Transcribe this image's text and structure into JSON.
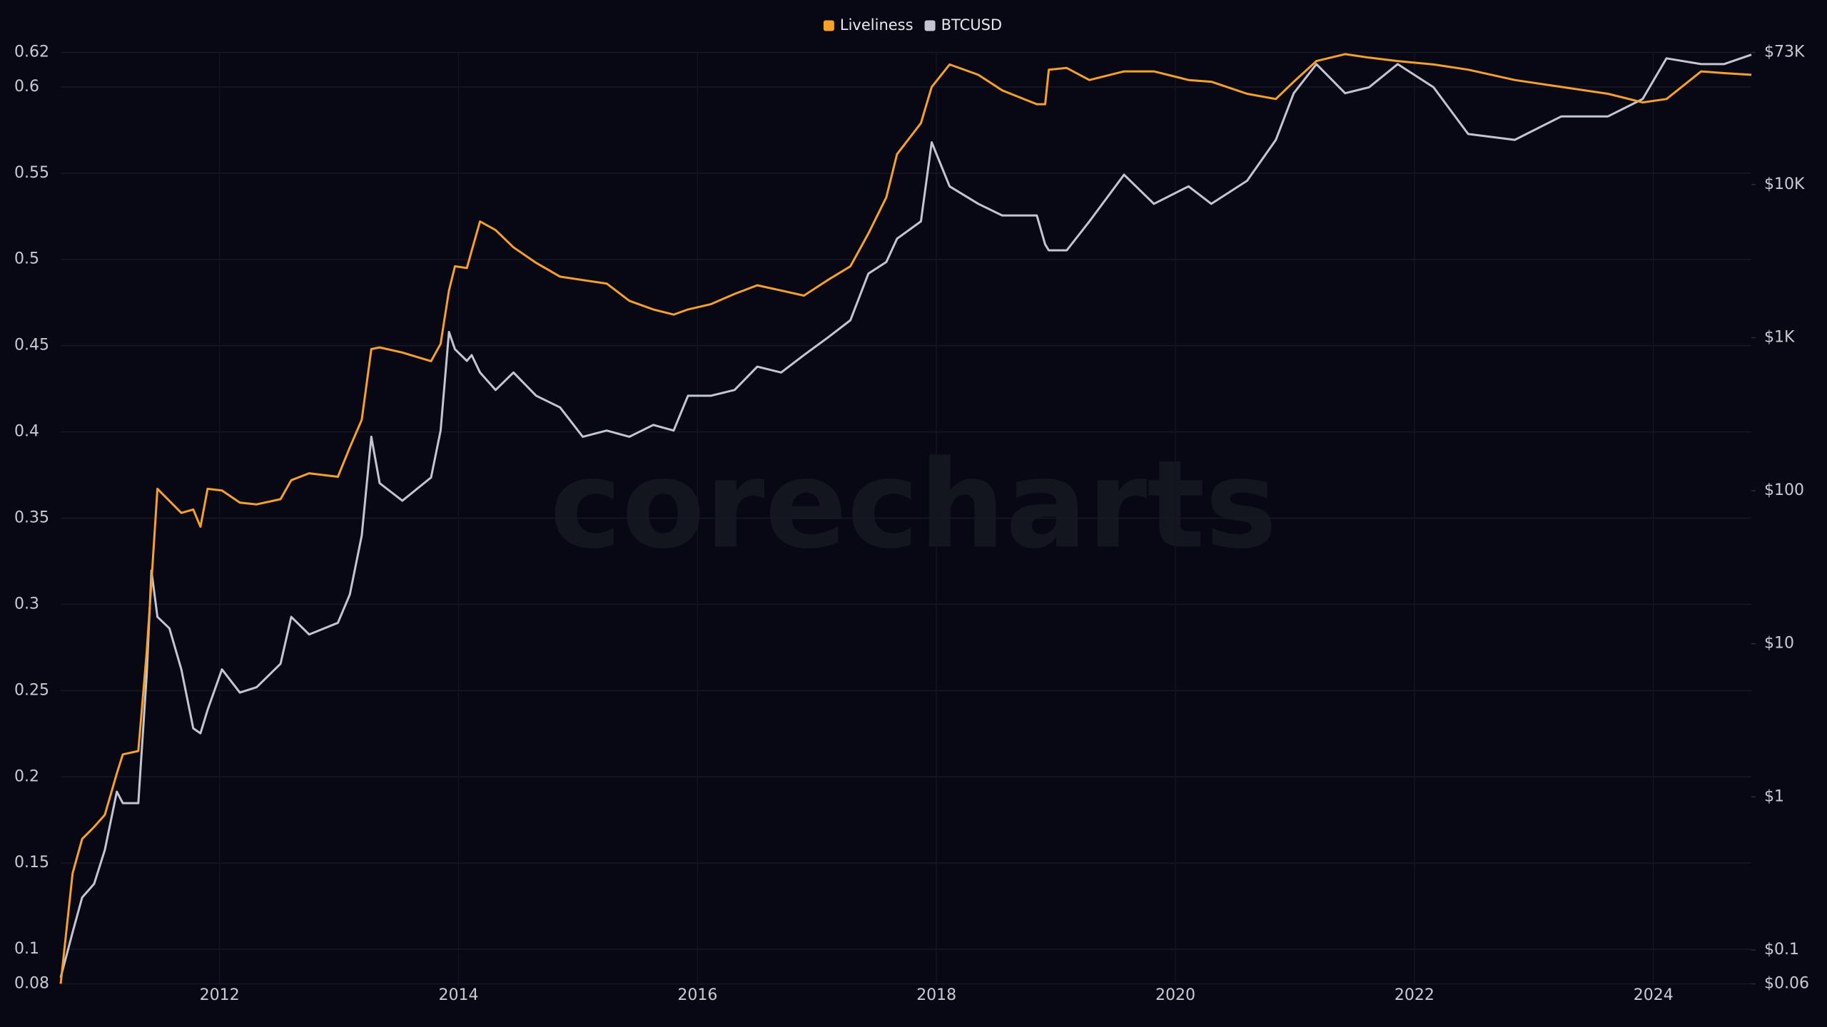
{
  "chart_data": {
    "type": "line",
    "watermark": "corecharts",
    "legend": "top",
    "grid": true,
    "x": [
      2010.67,
      2010.77,
      2010.85,
      2010.95,
      2011.04,
      2011.14,
      2011.19,
      2011.32,
      2011.39,
      2011.43,
      2011.48,
      2011.58,
      2011.68,
      2011.78,
      2011.84,
      2011.9,
      2012.02,
      2012.17,
      2012.31,
      2012.51,
      2012.6,
      2012.75,
      2012.99,
      2013.09,
      2013.19,
      2013.27,
      2013.34,
      2013.53,
      2013.77,
      2013.85,
      2013.92,
      2013.97,
      2014.07,
      2014.11,
      2014.18,
      2014.31,
      2014.46,
      2014.65,
      2014.85,
      2015.04,
      2015.24,
      2015.43,
      2015.63,
      2015.8,
      2015.92,
      2016.11,
      2016.31,
      2016.5,
      2016.7,
      2016.89,
      2017.09,
      2017.28,
      2017.43,
      2017.58,
      2017.67,
      2017.87,
      2017.96,
      2018.11,
      2018.35,
      2018.55,
      2018.84,
      2018.91,
      2018.94,
      2019.09,
      2019.28,
      2019.57,
      2019.82,
      2020.11,
      2020.3,
      2020.6,
      2020.84,
      2020.99,
      2021.18,
      2021.42,
      2021.62,
      2021.86,
      2022.16,
      2022.45,
      2022.84,
      2023.23,
      2023.62,
      2023.91,
      2024.11,
      2024.4,
      2024.59,
      2024.82
    ],
    "series": [
      {
        "name": "Liveliness",
        "color": "#f7a12b",
        "axis": "y",
        "values": [
          0.08,
          0.144,
          0.164,
          0.171,
          0.178,
          0.202,
          0.213,
          0.215,
          0.272,
          0.313,
          0.367,
          0.36,
          0.353,
          0.355,
          0.345,
          0.367,
          0.366,
          0.359,
          0.358,
          0.361,
          0.372,
          0.376,
          0.374,
          0.391,
          0.407,
          0.448,
          0.449,
          0.446,
          0.441,
          0.451,
          0.482,
          0.496,
          0.495,
          0.505,
          0.522,
          0.517,
          0.507,
          0.498,
          0.49,
          0.488,
          0.486,
          0.476,
          0.471,
          0.468,
          0.471,
          0.474,
          0.48,
          0.485,
          0.482,
          0.479,
          0.488,
          0.496,
          0.515,
          0.536,
          0.561,
          0.579,
          0.6,
          0.613,
          0.607,
          0.598,
          0.59,
          0.59,
          0.61,
          0.611,
          0.604,
          0.609,
          0.609,
          0.604,
          0.603,
          0.596,
          0.593,
          0.603,
          0.615,
          0.619,
          0.617,
          0.615,
          0.613,
          0.61,
          0.604,
          0.6,
          0.596,
          0.591,
          0.593,
          0.609,
          0.608,
          0.607
        ]
      },
      {
        "name": "BTCUSD",
        "color": "#c3c6d2",
        "axis": "y2",
        "values": [
          0.066,
          0.13,
          0.22,
          0.27,
          0.45,
          1.08,
          0.91,
          0.91,
          6.2,
          30,
          15,
          12.6,
          6.8,
          2.8,
          2.6,
          3.7,
          6.8,
          4.8,
          5.2,
          7.4,
          15,
          11.5,
          13.7,
          21,
          51,
          225,
          112,
          86,
          122,
          247,
          1090,
          840,
          705,
          769,
          592,
          455,
          592,
          417,
          350,
          225,
          247,
          225,
          269,
          247,
          417,
          417,
          455,
          646,
          592,
          769,
          1000,
          1300,
          2620,
          3120,
          4430,
          5750,
          18900,
          9730,
          7480,
          6280,
          6280,
          4060,
          3720,
          3720,
          5750,
          11600,
          7480,
          9730,
          7480,
          10600,
          19600,
          39500,
          61200,
          39500,
          43200,
          61200,
          43200,
          21400,
          19600,
          27900,
          27900,
          36200,
          66800,
          61200,
          61200,
          70500
        ]
      }
    ],
    "xlim": [
      2010.67,
      2024.82
    ],
    "xticks": [
      2012,
      2014,
      2016,
      2018,
      2020,
      2022,
      2024
    ],
    "ylim": [
      0.08,
      0.62
    ],
    "yticks": [
      0.08,
      0.1,
      0.15,
      0.2,
      0.25,
      0.3,
      0.35,
      0.4,
      0.45,
      0.5,
      0.55,
      0.6,
      0.62
    ],
    "y2scale": "log",
    "y2lim": [
      0.06,
      73000
    ],
    "y2ticks": [
      {
        "value": 0.06,
        "label": "$0.06"
      },
      {
        "value": 0.1,
        "label": "$0.1"
      },
      {
        "value": 1,
        "label": "$1"
      },
      {
        "value": 10,
        "label": "$10"
      },
      {
        "value": 100,
        "label": "$100"
      },
      {
        "value": 1000,
        "label": "$1K"
      },
      {
        "value": 10000,
        "label": "$10K"
      },
      {
        "value": 73000,
        "label": "$73K"
      }
    ]
  }
}
